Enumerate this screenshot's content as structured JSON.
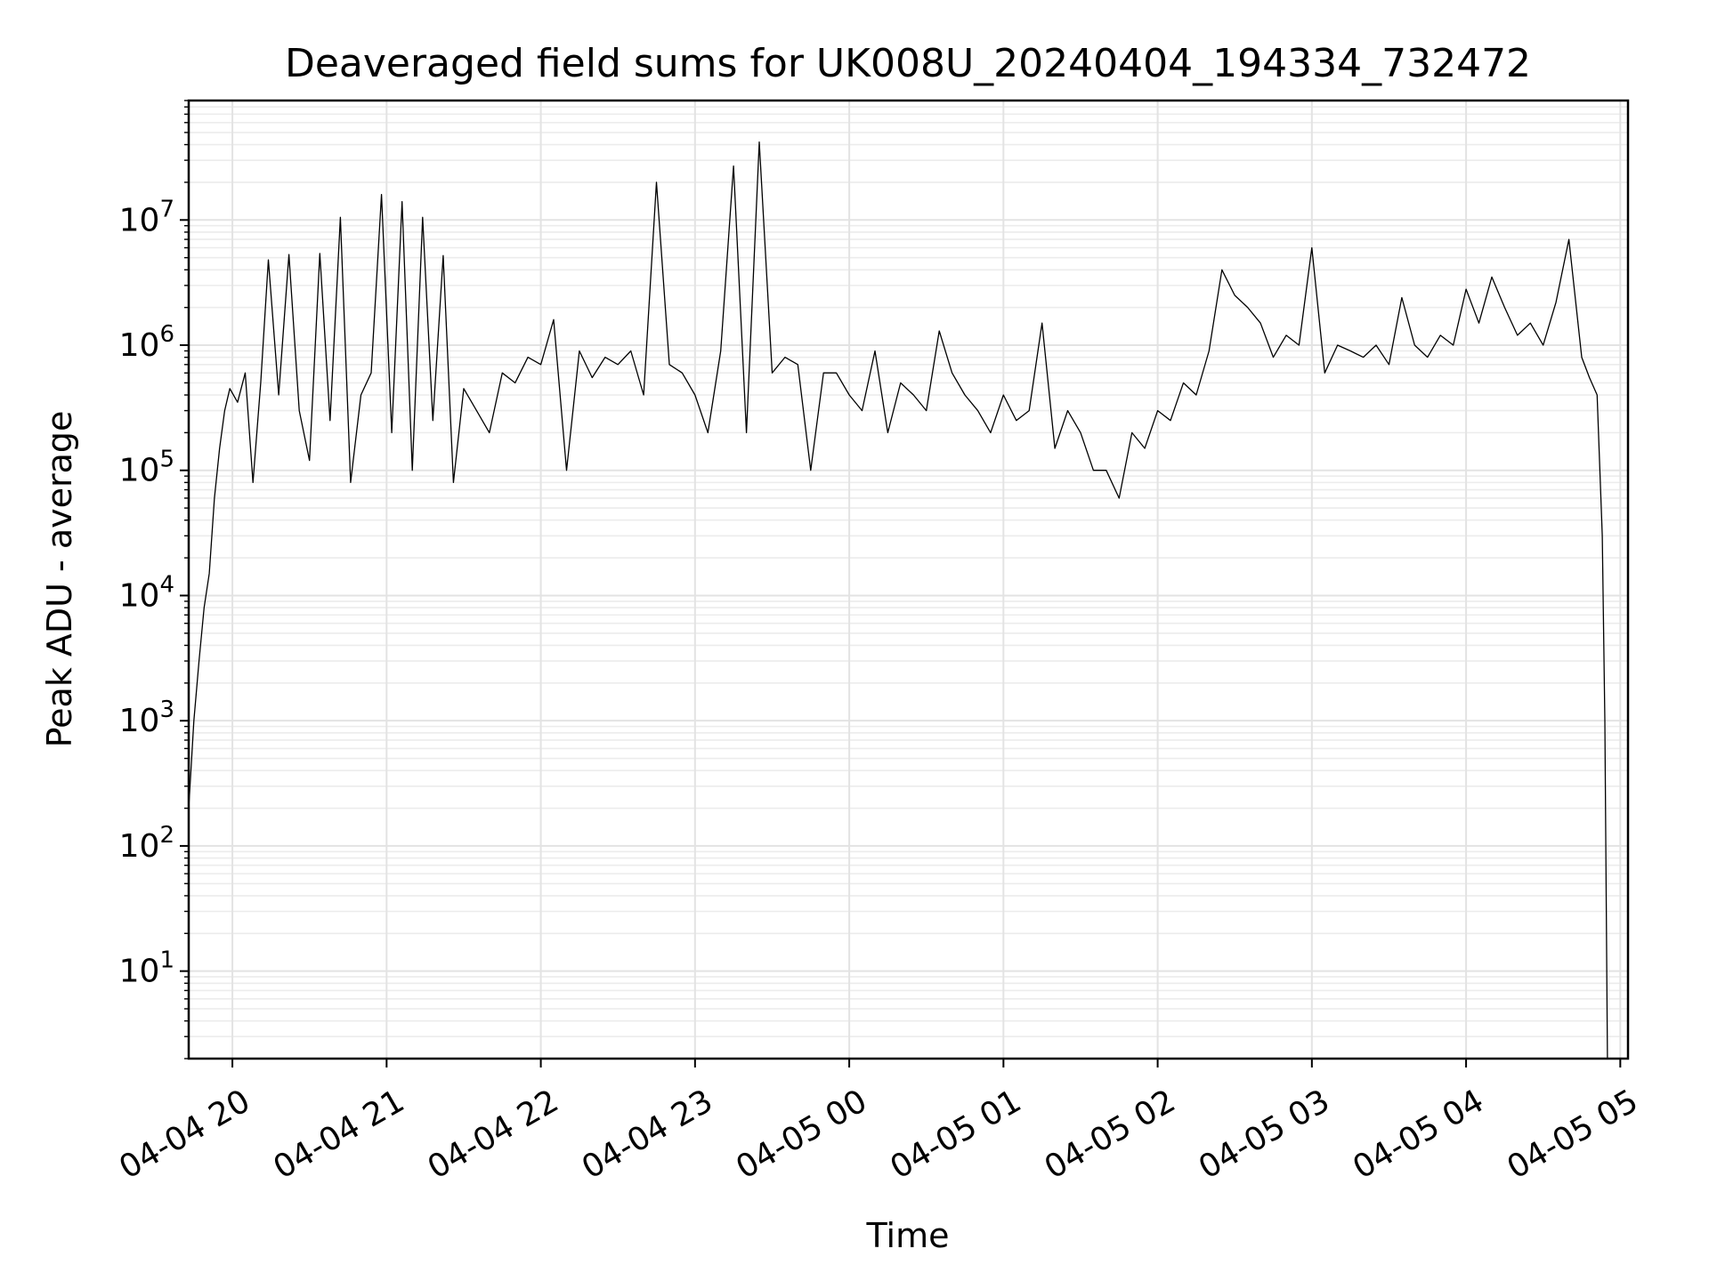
{
  "chart_data": {
    "type": "line",
    "title": "Deaveraged field sums for UK008U_20240404_194334_732472",
    "xlabel": "Time",
    "ylabel": "Peak ADU - average",
    "yscale": "log",
    "grid": true,
    "xlim": [
      "2024-04-04 19:43",
      "2024-04-05 05:03"
    ],
    "ylim": [
      2,
      90000000
    ],
    "x_tick_labels": [
      "04-04 20",
      "04-04 21",
      "04-04 22",
      "04-04 23",
      "04-05 00",
      "04-05 01",
      "04-05 02",
      "04-05 03",
      "04-05 04",
      "04-05 05"
    ],
    "x_tick_times": [
      "2024-04-04 20:00",
      "2024-04-04 21:00",
      "2024-04-04 22:00",
      "2024-04-04 23:00",
      "2024-04-05 00:00",
      "2024-04-05 01:00",
      "2024-04-05 02:00",
      "2024-04-05 03:00",
      "2024-04-05 04:00",
      "2024-04-05 05:00"
    ],
    "y_tick_labels": [
      {
        "base": "10",
        "exp": "1",
        "value": 10
      },
      {
        "base": "10",
        "exp": "2",
        "value": 100
      },
      {
        "base": "10",
        "exp": "3",
        "value": 1000
      },
      {
        "base": "10",
        "exp": "4",
        "value": 10000
      },
      {
        "base": "10",
        "exp": "5",
        "value": 100000
      },
      {
        "base": "10",
        "exp": "6",
        "value": 1000000
      },
      {
        "base": "10",
        "exp": "7",
        "value": 10000000
      }
    ],
    "series": [
      {
        "color": "#000000",
        "x": [
          "2024-04-04 19:43",
          "2024-04-04 19:45",
          "2024-04-04 19:47",
          "2024-04-04 19:49",
          "2024-04-04 19:51",
          "2024-04-04 19:53",
          "2024-04-04 19:55",
          "2024-04-04 19:57",
          "2024-04-04 19:59",
          "2024-04-04 20:02",
          "2024-04-04 20:05",
          "2024-04-04 20:08",
          "2024-04-04 20:11",
          "2024-04-04 20:14",
          "2024-04-04 20:18",
          "2024-04-04 20:22",
          "2024-04-04 20:26",
          "2024-04-04 20:30",
          "2024-04-04 20:34",
          "2024-04-04 20:38",
          "2024-04-04 20:42",
          "2024-04-04 20:46",
          "2024-04-04 20:50",
          "2024-04-04 20:54",
          "2024-04-04 20:58",
          "2024-04-04 21:02",
          "2024-04-04 21:06",
          "2024-04-04 21:10",
          "2024-04-04 21:14",
          "2024-04-04 21:18",
          "2024-04-04 21:22",
          "2024-04-04 21:26",
          "2024-04-04 21:30",
          "2024-04-04 21:35",
          "2024-04-04 21:40",
          "2024-04-04 21:45",
          "2024-04-04 21:50",
          "2024-04-04 21:55",
          "2024-04-04 22:00",
          "2024-04-04 22:05",
          "2024-04-04 22:10",
          "2024-04-04 22:15",
          "2024-04-04 22:20",
          "2024-04-04 22:25",
          "2024-04-04 22:30",
          "2024-04-04 22:35",
          "2024-04-04 22:40",
          "2024-04-04 22:45",
          "2024-04-04 22:50",
          "2024-04-04 22:55",
          "2024-04-04 23:00",
          "2024-04-04 23:05",
          "2024-04-04 23:10",
          "2024-04-04 23:15",
          "2024-04-04 23:20",
          "2024-04-04 23:25",
          "2024-04-04 23:30",
          "2024-04-04 23:35",
          "2024-04-04 23:40",
          "2024-04-04 23:45",
          "2024-04-04 23:50",
          "2024-04-04 23:55",
          "2024-04-05 00:00",
          "2024-04-05 00:05",
          "2024-04-05 00:10",
          "2024-04-05 00:15",
          "2024-04-05 00:20",
          "2024-04-05 00:25",
          "2024-04-05 00:30",
          "2024-04-05 00:35",
          "2024-04-05 00:40",
          "2024-04-05 00:45",
          "2024-04-05 00:50",
          "2024-04-05 00:55",
          "2024-04-05 01:00",
          "2024-04-05 01:05",
          "2024-04-05 01:10",
          "2024-04-05 01:15",
          "2024-04-05 01:20",
          "2024-04-05 01:25",
          "2024-04-05 01:30",
          "2024-04-05 01:35",
          "2024-04-05 01:40",
          "2024-04-05 01:45",
          "2024-04-05 01:50",
          "2024-04-05 01:55",
          "2024-04-05 02:00",
          "2024-04-05 02:05",
          "2024-04-05 02:10",
          "2024-04-05 02:15",
          "2024-04-05 02:20",
          "2024-04-05 02:25",
          "2024-04-05 02:30",
          "2024-04-05 02:35",
          "2024-04-05 02:40",
          "2024-04-05 02:45",
          "2024-04-05 02:50",
          "2024-04-05 02:55",
          "2024-04-05 03:00",
          "2024-04-05 03:05",
          "2024-04-05 03:10",
          "2024-04-05 03:15",
          "2024-04-05 03:20",
          "2024-04-05 03:25",
          "2024-04-05 03:30",
          "2024-04-05 03:35",
          "2024-04-05 03:40",
          "2024-04-05 03:45",
          "2024-04-05 03:50",
          "2024-04-05 03:55",
          "2024-04-05 04:00",
          "2024-04-05 04:05",
          "2024-04-05 04:10",
          "2024-04-05 04:15",
          "2024-04-05 04:20",
          "2024-04-05 04:25",
          "2024-04-05 04:30",
          "2024-04-05 04:35",
          "2024-04-05 04:40",
          "2024-04-05 04:45",
          "2024-04-05 04:48",
          "2024-04-05 04:51",
          "2024-04-05 04:53",
          "2024-04-05 04:54",
          "2024-04-05 04:55"
        ],
        "y": [
          200,
          1000,
          3000,
          8000,
          15000,
          60000,
          150000,
          300000,
          450000,
          350000,
          600000,
          80000,
          500000,
          4800000,
          400000,
          5300000,
          300000,
          120000,
          5400000,
          250000,
          10500000,
          80000,
          400000,
          600000,
          16000000,
          200000,
          14000000,
          100000,
          10500000,
          250000,
          5200000,
          80000,
          450000,
          300000,
          200000,
          600000,
          500000,
          800000,
          700000,
          1600000,
          100000,
          900000,
          550000,
          800000,
          700000,
          900000,
          400000,
          20000000,
          700000,
          600000,
          400000,
          200000,
          900000,
          27000000,
          200000,
          42000000,
          600000,
          800000,
          700000,
          100000,
          600000,
          600000,
          400000,
          300000,
          900000,
          200000,
          500000,
          400000,
          300000,
          1300000,
          600000,
          400000,
          300000,
          200000,
          400000,
          250000,
          300000,
          1500000,
          150000,
          300000,
          200000,
          100000,
          100000,
          60000,
          200000,
          150000,
          300000,
          250000,
          500000,
          400000,
          900000,
          4000000,
          2500000,
          2000000,
          1500000,
          800000,
          1200000,
          1000000,
          6000000,
          600000,
          1000000,
          900000,
          800000,
          1000000,
          700000,
          2400000,
          1000000,
          800000,
          1200000,
          1000000,
          2800000,
          1500000,
          3500000,
          2000000,
          1200000,
          1500000,
          1000000,
          2200000,
          7000000,
          800000,
          550000,
          400000,
          30000,
          1000,
          2
        ]
      }
    ]
  }
}
